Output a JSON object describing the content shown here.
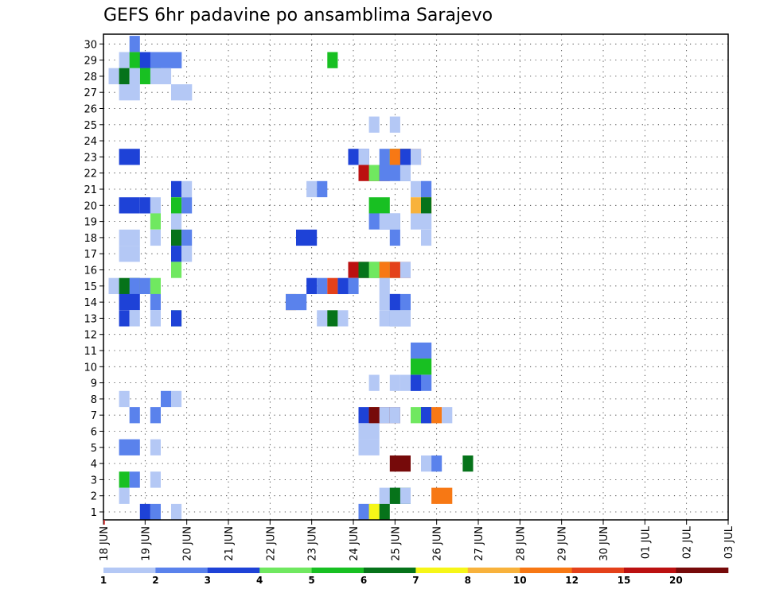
{
  "chart_data": {
    "type": "heatmap",
    "title": "GEFS 6hr padavine po ansamblima Sarajevo",
    "xlabel": "",
    "ylabel": "",
    "x_ticks": [
      "18 JUN",
      "19 JUN",
      "20 JUN",
      "21 JUN",
      "22 JUN",
      "23 JUN",
      "24 JUN",
      "25 JUN",
      "26 JUN",
      "27 JUN",
      "28 JUN",
      "29 JUN",
      "30 JUN",
      "01 JUL",
      "02 JUL",
      "03 JUL"
    ],
    "y_ticks": [
      1,
      2,
      3,
      4,
      5,
      6,
      7,
      8,
      9,
      10,
      11,
      12,
      13,
      14,
      15,
      16,
      17,
      18,
      19,
      20,
      21,
      22,
      23,
      24,
      25,
      26,
      27,
      28,
      29,
      30
    ],
    "ylim": [
      0,
      30
    ],
    "xlim_steps": [
      0,
      60
    ],
    "x_step": "6hr",
    "grid": true,
    "colorbar": {
      "labels": [
        "1",
        "2",
        "3",
        "4",
        "5",
        "6",
        "7",
        "8",
        "10",
        "12",
        "15",
        "20"
      ],
      "colors": [
        "#b4c8f5",
        "#5a82ec",
        "#1e42d7",
        "#70e860",
        "#18c022",
        "#06731a",
        "#f6f618",
        "#f8b23c",
        "#f77814",
        "#e4411a",
        "#bb1010",
        "#760a0a"
      ]
    },
    "cells": [
      [
        3,
        1,
        30,
        1
      ],
      [
        2,
        2,
        29,
        0
      ],
      [
        3,
        2,
        29,
        4
      ],
      [
        4,
        2,
        29,
        2
      ],
      [
        5,
        3,
        29,
        1
      ],
      [
        6,
        2,
        29,
        1
      ],
      [
        22,
        1,
        29,
        4
      ],
      [
        1,
        1,
        28,
        0
      ],
      [
        2,
        1,
        28,
        5
      ],
      [
        4,
        2,
        28,
        4
      ],
      [
        5,
        2,
        28,
        0
      ],
      [
        3,
        1,
        28,
        0
      ],
      [
        2,
        2,
        27,
        0
      ],
      [
        7,
        2,
        27,
        0
      ],
      [
        8,
        1,
        27,
        0
      ],
      [
        26,
        1,
        25,
        0
      ],
      [
        28,
        1,
        25,
        0
      ],
      [
        2,
        2,
        23,
        2
      ],
      [
        24,
        2,
        23,
        2
      ],
      [
        25,
        1,
        23,
        0
      ],
      [
        27,
        1,
        23,
        1
      ],
      [
        28,
        2,
        23,
        4
      ],
      [
        28,
        3,
        23,
        8
      ],
      [
        29,
        1,
        23,
        2
      ],
      [
        30,
        1,
        23,
        0
      ],
      [
        25,
        3,
        22,
        10
      ],
      [
        26,
        1,
        22,
        3
      ],
      [
        27,
        3,
        22,
        1
      ],
      [
        29,
        1,
        22,
        0
      ],
      [
        7,
        1,
        21,
        2
      ],
      [
        8,
        1,
        21,
        0
      ],
      [
        20,
        1,
        21,
        0
      ],
      [
        21,
        1,
        21,
        1
      ],
      [
        30,
        2,
        21,
        0
      ],
      [
        31,
        1,
        21,
        1
      ],
      [
        2,
        2,
        20,
        2
      ],
      [
        4,
        1,
        20,
        2
      ],
      [
        5,
        1,
        20,
        0
      ],
      [
        7,
        1,
        20,
        4
      ],
      [
        8,
        1,
        20,
        1
      ],
      [
        26,
        2,
        20,
        4
      ],
      [
        30,
        2,
        20,
        7
      ],
      [
        31,
        1,
        20,
        5
      ],
      [
        5,
        1,
        19,
        3
      ],
      [
        7,
        1,
        19,
        0
      ],
      [
        26,
        3,
        19,
        1
      ],
      [
        27,
        2,
        19,
        0
      ],
      [
        30,
        2,
        19,
        0
      ],
      [
        2,
        2,
        18,
        0
      ],
      [
        5,
        1,
        18,
        0
      ],
      [
        7,
        1,
        18,
        5
      ],
      [
        8,
        1,
        18,
        1
      ],
      [
        19,
        2,
        18,
        2
      ],
      [
        28,
        1,
        18,
        1
      ],
      [
        31,
        1,
        18,
        0
      ],
      [
        2,
        2,
        17,
        0
      ],
      [
        7,
        1,
        17,
        2
      ],
      [
        8,
        1,
        17,
        0
      ],
      [
        7,
        1,
        16,
        3
      ],
      [
        24,
        2,
        16,
        10
      ],
      [
        25,
        3,
        16,
        5
      ],
      [
        26,
        3,
        16,
        3
      ],
      [
        27,
        1,
        16,
        8
      ],
      [
        28,
        2,
        16,
        9
      ],
      [
        29,
        1,
        16,
        0
      ],
      [
        1,
        1,
        15,
        0
      ],
      [
        2,
        2,
        15,
        5
      ],
      [
        3,
        1,
        15,
        1
      ],
      [
        4,
        1,
        15,
        1
      ],
      [
        5,
        1,
        15,
        3
      ],
      [
        20,
        1,
        15,
        2
      ],
      [
        21,
        1,
        15,
        1
      ],
      [
        22,
        1,
        15,
        9
      ],
      [
        23,
        1,
        15,
        2
      ],
      [
        24,
        1,
        15,
        1
      ],
      [
        27,
        1,
        15,
        0
      ],
      [
        2,
        2,
        14,
        2
      ],
      [
        5,
        1,
        14,
        1
      ],
      [
        18,
        1,
        14,
        7
      ],
      [
        18,
        2,
        14,
        1
      ],
      [
        27,
        1,
        14,
        0
      ],
      [
        28,
        2,
        14,
        1
      ],
      [
        28,
        1,
        14,
        2
      ],
      [
        2,
        1,
        13,
        2
      ],
      [
        3,
        1,
        13,
        0
      ],
      [
        5,
        1,
        13,
        0
      ],
      [
        7,
        1,
        13,
        3
      ],
      [
        7,
        1,
        13,
        2
      ],
      [
        21,
        1,
        13,
        0
      ],
      [
        22,
        1,
        13,
        5
      ],
      [
        23,
        1,
        13,
        0
      ],
      [
        27,
        1,
        13,
        0
      ],
      [
        28,
        2,
        13,
        1
      ],
      [
        28,
        2,
        13,
        0
      ],
      [
        30,
        2,
        11,
        1
      ],
      [
        30,
        2,
        10,
        4
      ],
      [
        26,
        1,
        9,
        0
      ],
      [
        28,
        1,
        9,
        0
      ],
      [
        29,
        1,
        9,
        0
      ],
      [
        30,
        2,
        9,
        1
      ],
      [
        30,
        1,
        9,
        2
      ],
      [
        2,
        1,
        8,
        0
      ],
      [
        6,
        1,
        8,
        1
      ],
      [
        7,
        1,
        8,
        0
      ],
      [
        3,
        1,
        7,
        1
      ],
      [
        5,
        1,
        7,
        1
      ],
      [
        25,
        1,
        7,
        2
      ],
      [
        26,
        1,
        7,
        8
      ],
      [
        26,
        3,
        7,
        11
      ],
      [
        27,
        1,
        7,
        0
      ],
      [
        28,
        1,
        7,
        0
      ],
      [
        30,
        1,
        7,
        3
      ],
      [
        31,
        1,
        7,
        5
      ],
      [
        31,
        1,
        7,
        2
      ],
      [
        32,
        1,
        7,
        8
      ],
      [
        33,
        1,
        7,
        0
      ],
      [
        25,
        1,
        6,
        0
      ],
      [
        25,
        2,
        6,
        0
      ],
      [
        2,
        2,
        5,
        1
      ],
      [
        5,
        1,
        5,
        0
      ],
      [
        25,
        2,
        5,
        0
      ],
      [
        28,
        2,
        4,
        11
      ],
      [
        31,
        1,
        4,
        0
      ],
      [
        32,
        1,
        4,
        1
      ],
      [
        35,
        1,
        4,
        5
      ],
      [
        2,
        1,
        3,
        4
      ],
      [
        3,
        1,
        3,
        1
      ],
      [
        5,
        1,
        3,
        0
      ],
      [
        2,
        1,
        2,
        0
      ],
      [
        27,
        1,
        2,
        0
      ],
      [
        28,
        1,
        2,
        1
      ],
      [
        28,
        2,
        2,
        5
      ],
      [
        29,
        1,
        2,
        0
      ],
      [
        32,
        2,
        2,
        8
      ],
      [
        4,
        1,
        1,
        2
      ],
      [
        5,
        1,
        1,
        1
      ],
      [
        7,
        1,
        1,
        0
      ],
      [
        25,
        1,
        1,
        0
      ],
      [
        25,
        2,
        1,
        1
      ],
      [
        26,
        1,
        1,
        6
      ],
      [
        27,
        1,
        1,
        5
      ]
    ]
  }
}
